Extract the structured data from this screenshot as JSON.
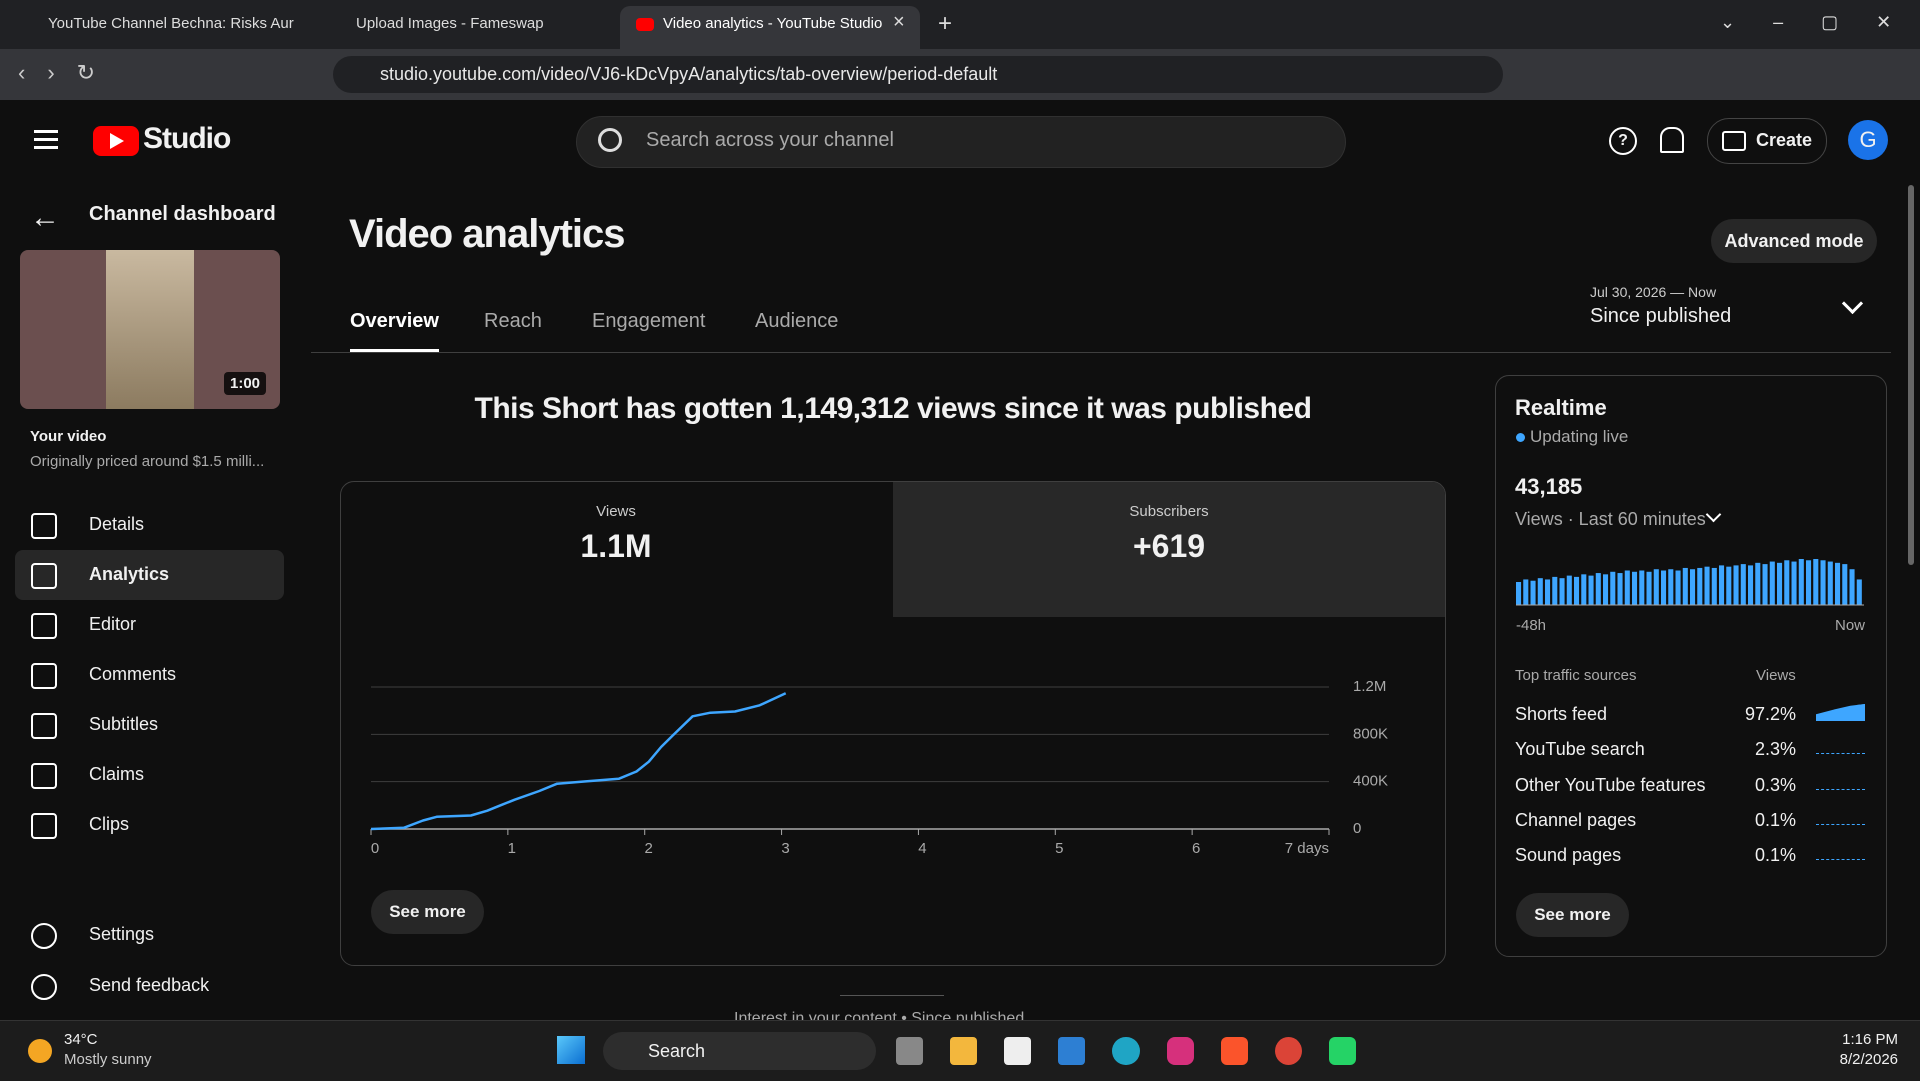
{
  "browser": {
    "tabs": [
      "YouTube Channel Bechna: Risks Aur N",
      "Upload Images - Fameswap",
      "Video analytics - YouTube Studio"
    ],
    "url": "studio.youtube.com/video/VJ6-kDcVpyA/analytics/tab-overview/period-default"
  },
  "header": {
    "logo": "Studio",
    "search_placeholder": "Search across your channel",
    "create": "Create",
    "avatar": "G"
  },
  "sidebar": {
    "back": "Channel dashboard",
    "duration": "1:00",
    "video_label": "Your video",
    "video_title": "Originally priced around $1.5 milli...",
    "items": [
      "Details",
      "Analytics",
      "Editor",
      "Comments",
      "Subtitles",
      "Claims",
      "Clips"
    ],
    "bottom_items": [
      "Settings",
      "Send feedback"
    ]
  },
  "main": {
    "title": "Video analytics",
    "advanced_mode": "Advanced mode",
    "tabs": [
      "Overview",
      "Reach",
      "Engagement",
      "Audience"
    ],
    "period_range": "Jul 30, 2026 — Now",
    "period": "Since published",
    "headline": "This Short has gotten 1,149,312 views since it was published",
    "metrics": [
      {
        "label": "Views",
        "value": "1.1M"
      },
      {
        "label": "Subscribers",
        "value": "+619"
      }
    ],
    "see_more": "See more",
    "next_section": "Interest in your content • Since published"
  },
  "chart_data": {
    "type": "line",
    "x": [
      0,
      0.24,
      0.38,
      0.48,
      0.73,
      0.85,
      0.94,
      1.05,
      1.23,
      1.36,
      1.58,
      1.81,
      1.94,
      2.03,
      2.12,
      2.21,
      2.35,
      2.48,
      2.66,
      2.84,
      3.03
    ],
    "series": [
      {
        "name": "Views",
        "color": "#3ea6ff",
        "values": [
          0,
          10000,
          72000,
          103000,
          114000,
          155000,
          197000,
          248000,
          321000,
          383000,
          403000,
          424000,
          486000,
          569000,
          693000,
          797000,
          952000,
          983000,
          993000,
          1045000,
          1148000
        ]
      }
    ],
    "xlim": [
      0,
      7
    ],
    "xticks": [
      0,
      1,
      2,
      3,
      4,
      5,
      6,
      {
        "value": 7,
        "label": "7 days"
      }
    ],
    "ylim": [
      0,
      1200000
    ],
    "yticks": [
      {
        "value": 0,
        "label": "0"
      },
      {
        "value": 400000,
        "label": "400K"
      },
      {
        "value": 800000,
        "label": "800K"
      },
      {
        "value": 1200000,
        "label": "1.2M"
      }
    ],
    "grid": true
  },
  "realtime": {
    "title": "Realtime",
    "status": "Updating live",
    "count": "43,185",
    "period": "Views · Last 60 minutes",
    "bar_values": [
      18,
      20,
      19,
      21,
      20,
      22,
      21,
      23,
      22,
      24,
      23,
      25,
      24,
      26,
      25,
      27,
      26,
      27,
      26,
      28,
      27,
      28,
      27,
      29,
      28,
      29,
      30,
      29,
      31,
      30,
      31,
      32,
      31,
      33,
      32,
      34,
      33,
      35,
      34,
      36,
      35,
      36,
      35,
      34,
      33,
      32,
      28,
      20
    ],
    "start": "-48h",
    "end": "Now",
    "sources_title": "Top traffic sources",
    "views_header": "Views",
    "sources": [
      {
        "name": "Shorts feed",
        "share": "97.2%"
      },
      {
        "name": "YouTube search",
        "share": "2.3%"
      },
      {
        "name": "Other YouTube features",
        "share": "0.3%"
      },
      {
        "name": "Channel pages",
        "share": "0.1%"
      },
      {
        "name": "Sound pages",
        "share": "0.1%"
      }
    ],
    "see_more": "See more"
  },
  "taskbar": {
    "temperature": "34°C",
    "weather": "Mostly sunny",
    "search": "Search",
    "time": "1:16 PM",
    "date": "8/2/2026"
  }
}
